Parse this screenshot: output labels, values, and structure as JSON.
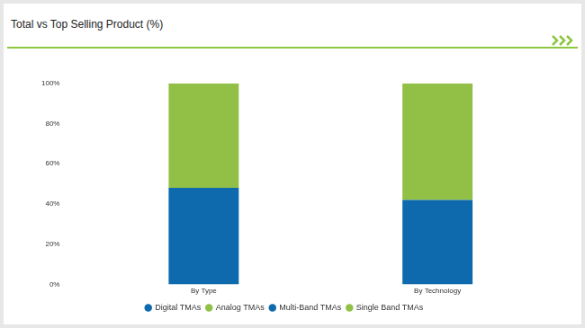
{
  "chart_data": {
    "type": "bar",
    "title": "Total vs Top Selling Product (%)",
    "categories": [
      "By Type",
      "By Technology"
    ],
    "series": [
      {
        "name": "Digital TMAs",
        "color": "#0e6aad",
        "values": [
          null,
          42
        ]
      },
      {
        "name": "Analog TMAs",
        "color": "#92c047",
        "values": [
          null,
          58
        ]
      },
      {
        "name": "Multi-Band TMAs",
        "color": "#0e6aad",
        "values": [
          48,
          null
        ]
      },
      {
        "name": "Single Band TMAs",
        "color": "#92c047",
        "values": [
          52,
          null
        ]
      }
    ],
    "ylim": [
      0,
      100
    ],
    "yticks": [
      {
        "value": 0,
        "label": "0%"
      },
      {
        "value": 20,
        "label": "20%"
      },
      {
        "value": 40,
        "label": "40%"
      },
      {
        "value": 60,
        "label": "60%"
      },
      {
        "value": 80,
        "label": "80%"
      },
      {
        "value": 100,
        "label": "100%"
      }
    ],
    "stacked": true,
    "grid": false,
    "legend": "bottom"
  }
}
